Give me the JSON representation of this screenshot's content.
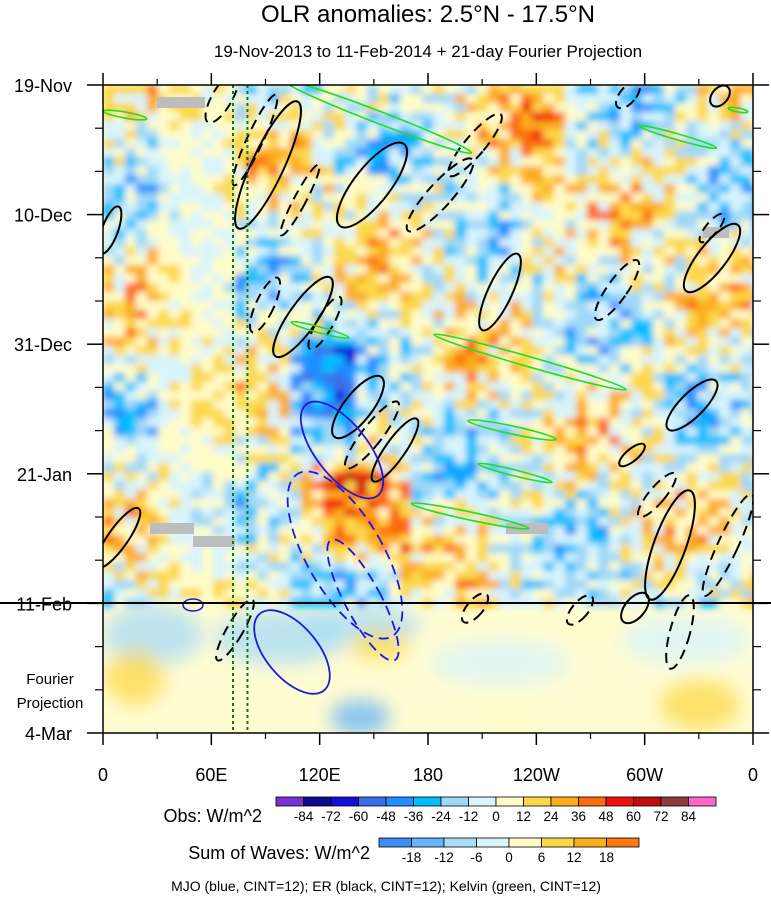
{
  "chart_data": {
    "type": "heatmap",
    "title": "OLR anomalies: 2.5°N - 17.5°N",
    "subtitle": "19-Nov-2013 to 11-Feb-2014 + 21-day Fourier Projection",
    "x_ticks": [
      "0",
      "60E",
      "120E",
      "180",
      "120W",
      "60W",
      "0"
    ],
    "x_tick_values": [
      0,
      60,
      120,
      180,
      240,
      300,
      360
    ],
    "xlim": [
      0,
      360
    ],
    "y_ticks": [
      "19-Nov",
      "10-Dec",
      "31-Dec",
      "21-Jan",
      "11-Feb",
      "4-Mar"
    ],
    "y_tick_days": [
      0,
      21,
      42,
      63,
      84,
      105
    ],
    "ylim_days": [
      0,
      105
    ],
    "projection_start_day": 84,
    "projection_label": [
      "Fourier",
      "Projection"
    ],
    "obs_colorbar": {
      "label": "Obs: W/m^2",
      "levels": [
        -84,
        -72,
        -60,
        -48,
        -36,
        -24,
        -12,
        0,
        12,
        24,
        36,
        48,
        60,
        72,
        84
      ],
      "colors": [
        "#7b2fd6",
        "#0c0c8c",
        "#1010d8",
        "#3a6ee8",
        "#1e90ff",
        "#00bfff",
        "#9fd8f8",
        "#d8f4fc",
        "#fffcc8",
        "#fcd848",
        "#fcac1c",
        "#fc6a0c",
        "#f01010",
        "#c00c0c",
        "#8c3c3c",
        "#ff66cc"
      ]
    },
    "waves_colorbar": {
      "label": "Sum of Waves: W/m^2",
      "levels": [
        -18,
        -12,
        -6,
        0,
        6,
        12,
        18
      ],
      "colors": [
        "#3a8ef0",
        "#64b4f8",
        "#a8dcf8",
        "#d8f4fc",
        "#fffcc8",
        "#fcd848",
        "#fcac1c",
        "#fc7a14"
      ]
    },
    "contour_legend": "MJO (blue, CINT=12); ER (black, CINT=12); Kelvin (green, CINT=12)",
    "wave_series": [
      {
        "name": "MJO",
        "color": "#1a1adc",
        "cint": 12
      },
      {
        "name": "ER",
        "color": "#000000",
        "cint": 12
      },
      {
        "name": "Kelvin",
        "color": "#22dd22",
        "cint": 12
      }
    ],
    "reference_lines_lon": [
      72,
      80
    ]
  }
}
